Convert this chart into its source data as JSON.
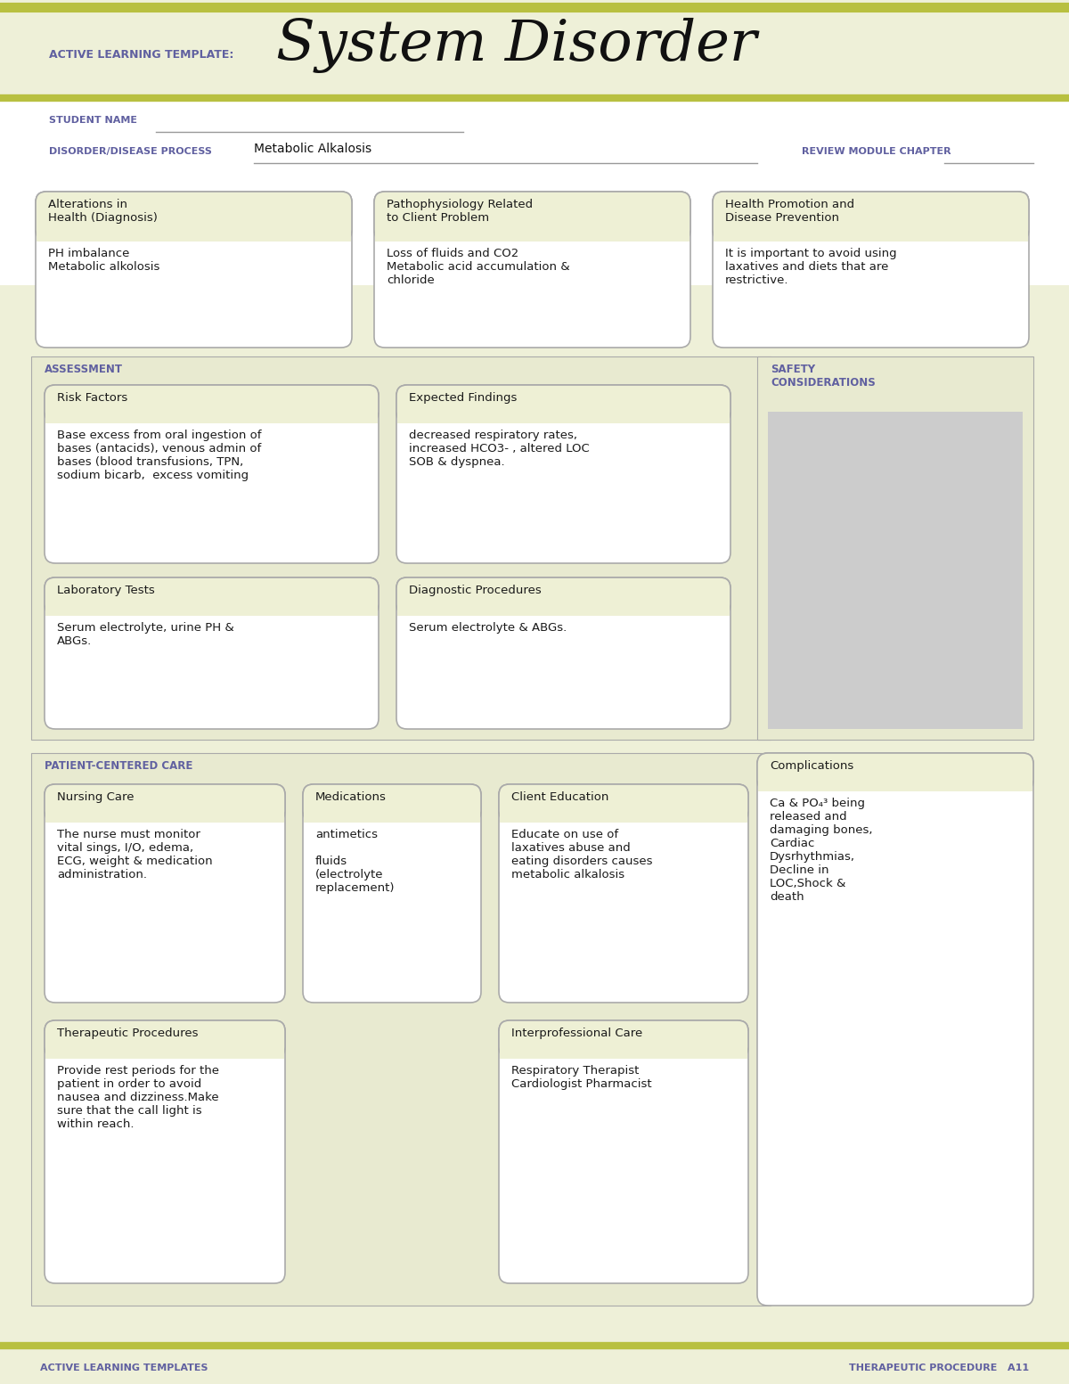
{
  "bg_color": "#eef0d8",
  "white_bg": "#ffffff",
  "box_bg": "#eef0d5",
  "section_bg": "#e8ead0",
  "gray_bg": "#cccccc",
  "accent_color": "#6060a0",
  "border_color": "#aaaaaa",
  "olive_line": "#b8c040",
  "header_text": "ACTIVE LEARNING TEMPLATE:",
  "title_text": "System Disorder",
  "student_label": "STUDENT NAME",
  "disorder_label": "DISORDER/DISEASE PROCESS",
  "disorder_value": "Metabolic Alkalosis",
  "review_label": "REVIEW MODULE CHAPTER",
  "box1_title": "Alterations in\nHealth (Diagnosis)",
  "box1_body": "PH imbalance\nMetabolic alkolosis",
  "box2_title": "Pathophysiology Related\nto Client Problem",
  "box2_body": "Loss of fluids and CO2\nMetabolic acid accumulation &\nchloride",
  "box3_title": "Health Promotion and\nDisease Prevention",
  "box3_body": "It is important to avoid using\nlaxatives and diets that are\nrestrictive.",
  "assess_label": "ASSESSMENT",
  "safety_label": "SAFETY\nCONSIDERATIONS",
  "risk_title": "Risk Factors",
  "risk_body": "Base excess from oral ingestion of\nbases (antacids), venous admin of\nbases (blood transfusions, TPN,\nsodium bicarb,  excess vomiting",
  "expected_title": "Expected Findings",
  "expected_body": "decreased respiratory rates,\nincreased HCO3- , altered LOC\nSOB & dyspnea.",
  "lab_title": "Laboratory Tests",
  "lab_body": "Serum electrolyte, urine PH &\nABGs.",
  "diag_title": "Diagnostic Procedures",
  "diag_body": "Serum electrolyte & ABGs.",
  "patient_label": "PATIENT-CENTERED CARE",
  "nursing_title": "Nursing Care",
  "nursing_body": "The nurse must monitor\nvital sings, I/O, edema,\nECG, weight & medication\nadministration.",
  "med_title": "Medications",
  "med_body": "antimetics\n\nfluids\n(electrolyte\nreplacement)",
  "client_title": "Client Education",
  "client_body": "Educate on use of\nlaxatives abuse and\neating disorders causes\nmetabolic alkalosis",
  "complications_title": "Complications",
  "complications_body": "Ca & PO₄³ being\nreleased and\ndamaging bones,\nCardiac\nDysrhythmias,\nDecline in\nLOC,Shock &\ndeath",
  "therapeutic_title": "Therapeutic Procedures",
  "therapeutic_body": "Provide rest periods for the\npatient in order to avoid\nnausea and dizziness.Make\nsure that the call light is\nwithin reach.",
  "interpro_title": "Interprofessional Care",
  "interpro_body": "Respiratory Therapist\nCardiologist Pharmacist",
  "footer_left": "ACTIVE LEARNING TEMPLATES",
  "footer_right": "THERAPEUTIC PROCEDURE   A11"
}
